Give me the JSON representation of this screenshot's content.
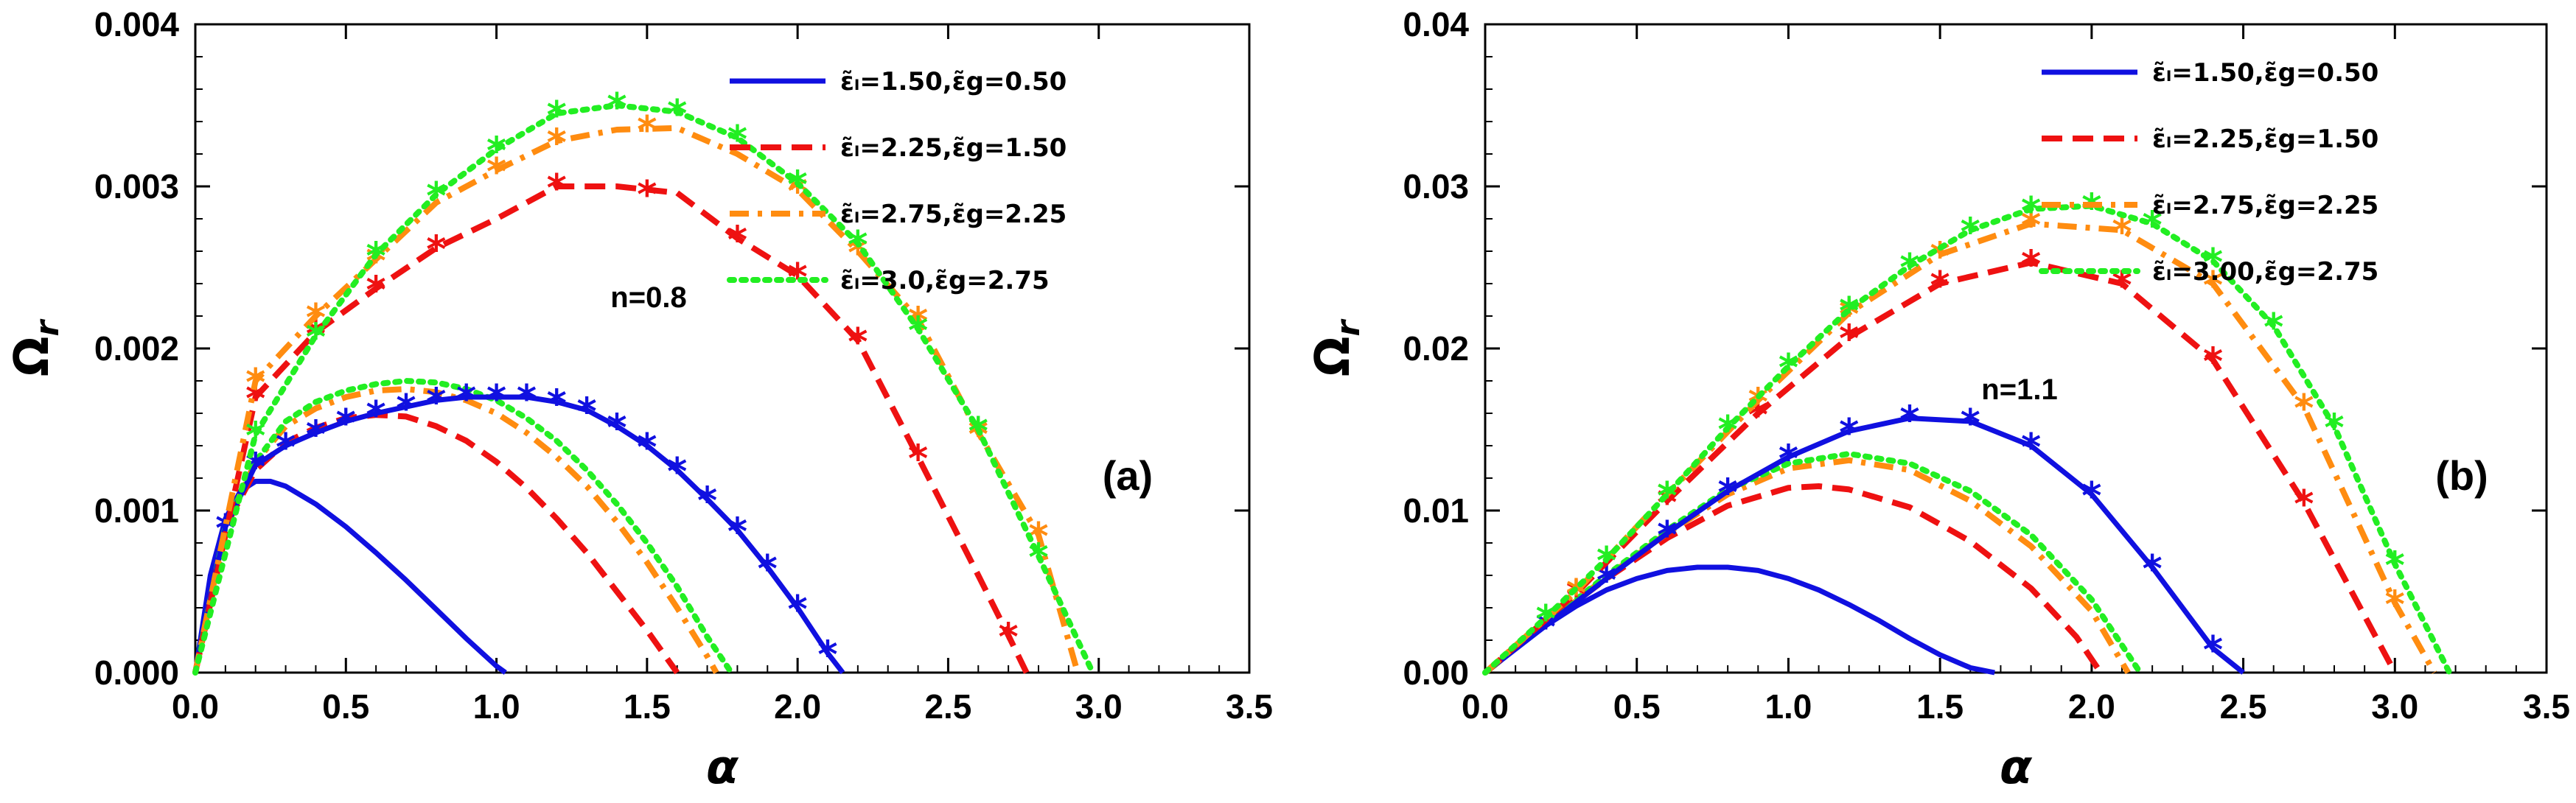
{
  "colors": {
    "blue": "#1010e0",
    "red": "#ee1111",
    "orange": "#ff8c10",
    "green": "#22ee22",
    "axis": "#000000"
  },
  "chart_data": [
    {
      "type": "line",
      "panel_label": "(a)",
      "annotation": "n=0.8",
      "xlabel": "α",
      "ylabel": "Ω",
      "ylabel_sub": "r",
      "xlim": [
        0,
        3.5
      ],
      "ylim": [
        0,
        0.004
      ],
      "xticks": [
        0,
        0.5,
        1,
        1.5,
        2,
        2.5,
        3,
        3.5
      ],
      "xtick_labels": [
        "0.0",
        "0.5",
        "1.0",
        "1.5",
        "2.0",
        "2.5",
        "3.0",
        "3.5"
      ],
      "yticks": [
        0,
        0.001,
        0.002,
        0.003,
        0.004
      ],
      "ytick_labels": [
        "0.000",
        "0.001",
        "0.002",
        "0.003",
        "0.004"
      ],
      "legend": [
        {
          "label": "ε̃ₗ=1.50,ε̃g=0.50",
          "color": "blue",
          "dash": "none"
        },
        {
          "label": "ε̃ₗ=2.25,ε̃g=1.50",
          "color": "red",
          "dash": "dashed"
        },
        {
          "label": "ε̃ₗ=2.75,ε̃g=2.25",
          "color": "orange",
          "dash": "dashdot"
        },
        {
          "label": "ε̃ₗ=3.0,ε̃g=2.75",
          "color": "green",
          "dash": "dotted"
        }
      ],
      "series": [
        {
          "name": "ε̃ₗ=1.50,ε̃g=0.50",
          "color": "blue",
          "dash": "none",
          "kind": "line",
          "x": [
            0,
            0.05,
            0.1,
            0.15,
            0.2,
            0.25,
            0.3,
            0.4,
            0.5,
            0.6,
            0.7,
            0.8,
            0.9,
            1.0,
            1.03
          ],
          "y": [
            0,
            0.0006,
            0.00095,
            0.00112,
            0.00118,
            0.00118,
            0.00115,
            0.00104,
            0.0009,
            0.00074,
            0.00057,
            0.00039,
            0.00021,
            4e-05,
            0
          ]
        },
        {
          "name": "ε̃ₗ=2.25,ε̃g=1.50",
          "color": "red",
          "dash": "dashed",
          "kind": "line",
          "x": [
            0,
            0.1,
            0.2,
            0.3,
            0.4,
            0.5,
            0.6,
            0.7,
            0.8,
            0.9,
            1.0,
            1.1,
            1.2,
            1.3,
            1.4,
            1.5,
            1.6
          ],
          "y": [
            0,
            0.0009,
            0.00125,
            0.00142,
            0.00151,
            0.00157,
            0.00159,
            0.00158,
            0.00152,
            0.00143,
            0.0013,
            0.00114,
            0.00095,
            0.00074,
            0.0005,
            0.00026,
            0
          ]
        },
        {
          "name": "ε̃ₗ=2.75,ε̃g=2.25",
          "color": "orange",
          "dash": "dashdot",
          "kind": "line",
          "x": [
            0,
            0.1,
            0.2,
            0.3,
            0.4,
            0.5,
            0.6,
            0.7,
            0.8,
            0.9,
            1.0,
            1.1,
            1.2,
            1.3,
            1.4,
            1.5,
            1.6,
            1.7,
            1.73
          ],
          "y": [
            0,
            0.0009,
            0.0013,
            0.00152,
            0.00163,
            0.0017,
            0.00174,
            0.00175,
            0.00173,
            0.00168,
            0.0016,
            0.00148,
            0.00133,
            0.00115,
            0.00093,
            0.00068,
            0.0004,
            0.0001,
            0
          ]
        },
        {
          "name": "ε̃ₗ=3.0,ε̃g=2.75",
          "color": "green",
          "dash": "dotted",
          "kind": "line",
          "x": [
            0,
            0.1,
            0.2,
            0.3,
            0.4,
            0.5,
            0.6,
            0.7,
            0.8,
            0.9,
            1.0,
            1.1,
            1.2,
            1.3,
            1.4,
            1.5,
            1.6,
            1.7,
            1.78
          ],
          "y": [
            0,
            0.0009,
            0.0013,
            0.00155,
            0.00167,
            0.00174,
            0.00178,
            0.0018,
            0.00179,
            0.00175,
            0.00168,
            0.00157,
            0.00143,
            0.00125,
            0.00104,
            0.0008,
            0.00053,
            0.00022,
            0
          ]
        },
        {
          "name": "ε̃ₗ=1.50,ε̃g=0.50 (with stars)",
          "color": "blue",
          "dash": "none",
          "kind": "line-star",
          "x": [
            0,
            0.1,
            0.2,
            0.3,
            0.4,
            0.5,
            0.6,
            0.7,
            0.8,
            0.9,
            1.0,
            1.1,
            1.2,
            1.3,
            1.4,
            1.5,
            1.6,
            1.7,
            1.8,
            1.9,
            2.0,
            2.1,
            2.15
          ],
          "y": [
            0,
            0.0009,
            0.00128,
            0.0014,
            0.00148,
            0.00155,
            0.0016,
            0.00164,
            0.00168,
            0.0017,
            0.0017,
            0.0017,
            0.00167,
            0.00162,
            0.00152,
            0.0014,
            0.00125,
            0.00107,
            0.00088,
            0.00065,
            0.0004,
            0.00012,
            0
          ],
          "marker_x": [
            0.1,
            0.2,
            0.3,
            0.4,
            0.5,
            0.6,
            0.7,
            0.8,
            0.9,
            1.0,
            1.1,
            1.2,
            1.3,
            1.4,
            1.5,
            1.6,
            1.7,
            1.8,
            1.9,
            2.0,
            2.1
          ],
          "marker_y": [
            0.0009,
            0.00128,
            0.0014,
            0.00148,
            0.00155,
            0.0016,
            0.00164,
            0.00168,
            0.0017,
            0.0017,
            0.0017,
            0.00167,
            0.00162,
            0.00152,
            0.0014,
            0.00125,
            0.00107,
            0.00088,
            0.00065,
            0.0004,
            0.00012
          ]
        },
        {
          "name": "ε̃ₗ=2.25,ε̃g=1.50 (with stars)",
          "color": "red",
          "dash": "dashed",
          "kind": "line-star",
          "x": [
            0,
            0.2,
            0.4,
            0.6,
            0.8,
            1.0,
            1.2,
            1.4,
            1.6,
            1.8,
            2.0,
            2.2,
            2.4,
            2.6,
            2.7,
            2.76
          ],
          "y": [
            0,
            0.0017,
            0.0021,
            0.00237,
            0.00262,
            0.0028,
            0.003,
            0.003,
            0.00296,
            0.00268,
            0.00245,
            0.00205,
            0.00133,
            0.0006,
            0.00023,
            0
          ],
          "marker_x": [
            0.2,
            0.4,
            0.6,
            0.8,
            1.2,
            1.5,
            1.8,
            2.0,
            2.2,
            2.4,
            2.7
          ],
          "marker_y": [
            0.0017,
            0.0021,
            0.00237,
            0.00262,
            0.003,
            0.00296,
            0.00268,
            0.00245,
            0.00205,
            0.00133,
            0.00023
          ]
        },
        {
          "name": "ε̃ₗ=2.75,ε̃g=2.25 (with stars)",
          "color": "orange",
          "dash": "dashdot",
          "kind": "line-star",
          "x": [
            0,
            0.2,
            0.4,
            0.6,
            0.8,
            1.0,
            1.2,
            1.4,
            1.6,
            1.8,
            2.0,
            2.2,
            2.4,
            2.6,
            2.8,
            2.93
          ],
          "y": [
            0,
            0.0018,
            0.0022,
            0.00255,
            0.0029,
            0.0031,
            0.00328,
            0.00335,
            0.00336,
            0.0032,
            0.00298,
            0.0026,
            0.00218,
            0.00148,
            0.00085,
            0
          ],
          "marker_x": [
            0.2,
            0.4,
            0.6,
            1.0,
            1.2,
            1.5,
            2.0,
            2.2,
            2.4,
            2.6,
            2.8
          ],
          "marker_y": [
            0.0018,
            0.0022,
            0.00255,
            0.0031,
            0.00328,
            0.00336,
            0.00298,
            0.0026,
            0.00218,
            0.00148,
            0.00085
          ]
        },
        {
          "name": "ε̃ₗ=3.0,ε̃g=2.75 (with stars)",
          "color": "green",
          "dash": "dotted",
          "kind": "line-star",
          "x": [
            0,
            0.2,
            0.4,
            0.6,
            0.8,
            1.0,
            1.2,
            1.4,
            1.6,
            1.8,
            2.0,
            2.2,
            2.4,
            2.6,
            2.8,
            2.98
          ],
          "y": [
            0,
            0.00147,
            0.00208,
            0.00258,
            0.00295,
            0.00323,
            0.00345,
            0.0035,
            0.00346,
            0.0033,
            0.00302,
            0.00265,
            0.00212,
            0.0015,
            0.00072,
            0
          ],
          "marker_x": [
            0.2,
            0.4,
            0.6,
            0.8,
            1.0,
            1.2,
            1.4,
            1.6,
            1.8,
            2.0,
            2.2,
            2.4,
            2.6,
            2.8
          ],
          "marker_y": [
            0.00147,
            0.00208,
            0.00258,
            0.00295,
            0.00323,
            0.00345,
            0.0035,
            0.00346,
            0.0033,
            0.00302,
            0.00265,
            0.00212,
            0.0015,
            0.00072
          ]
        }
      ]
    },
    {
      "type": "line",
      "panel_label": "(b)",
      "annotation": "n=1.1",
      "xlabel": "α",
      "ylabel": "Ω",
      "ylabel_sub": "r",
      "xlim": [
        0,
        3.5
      ],
      "ylim": [
        0,
        0.04
      ],
      "xticks": [
        0,
        0.5,
        1,
        1.5,
        2,
        2.5,
        3,
        3.5
      ],
      "xtick_labels": [
        "0.0",
        "0.5",
        "1.0",
        "1.5",
        "2.0",
        "2.5",
        "3.0",
        "3.5"
      ],
      "yticks": [
        0,
        0.01,
        0.02,
        0.03,
        0.04
      ],
      "ytick_labels": [
        "0.00",
        "0.01",
        "0.02",
        "0.03",
        "0.04"
      ],
      "legend": [
        {
          "label": "ε̃ₗ=1.50,ε̃g=0.50",
          "color": "blue",
          "dash": "none"
        },
        {
          "label": "ε̃ₗ=2.25,ε̃g=1.50",
          "color": "red",
          "dash": "dashed"
        },
        {
          "label": "ε̃ₗ=2.75,ε̃g=2.25",
          "color": "orange",
          "dash": "dashdot"
        },
        {
          "label": "ε̃ₗ=3.00,ε̃g=2.75",
          "color": "green",
          "dash": "dotted"
        }
      ],
      "series": [
        {
          "name": "ε̃ₗ=1.50,ε̃g=0.50",
          "color": "blue",
          "dash": "none",
          "kind": "line",
          "x": [
            0,
            0.1,
            0.2,
            0.3,
            0.4,
            0.5,
            0.6,
            0.7,
            0.8,
            0.9,
            1.0,
            1.1,
            1.2,
            1.3,
            1.4,
            1.5,
            1.6,
            1.68
          ],
          "y": [
            0,
            0.0015,
            0.0029,
            0.0041,
            0.0051,
            0.0058,
            0.0063,
            0.0065,
            0.0065,
            0.0063,
            0.0058,
            0.0051,
            0.0042,
            0.0032,
            0.0021,
            0.0011,
            0.0003,
            0
          ]
        },
        {
          "name": "ε̃ₗ=2.25,ε̃g=1.50",
          "color": "red",
          "dash": "dashed",
          "kind": "line",
          "x": [
            0,
            0.2,
            0.4,
            0.6,
            0.8,
            1.0,
            1.1,
            1.2,
            1.4,
            1.6,
            1.8,
            1.95,
            2.03
          ],
          "y": [
            0,
            0.003,
            0.0058,
            0.0083,
            0.0103,
            0.0114,
            0.0115,
            0.0113,
            0.0102,
            0.0081,
            0.0052,
            0.0022,
            0
          ]
        },
        {
          "name": "ε̃ₗ=2.75,ε̃g=2.25",
          "color": "orange",
          "dash": "dashdot",
          "kind": "line",
          "x": [
            0,
            0.2,
            0.4,
            0.6,
            0.8,
            1.0,
            1.2,
            1.4,
            1.6,
            1.8,
            2.0,
            2.12
          ],
          "y": [
            0,
            0.003,
            0.0059,
            0.0086,
            0.011,
            0.0126,
            0.0131,
            0.0125,
            0.0106,
            0.0078,
            0.0038,
            0
          ]
        },
        {
          "name": "ε̃ₗ=3.00,ε̃g=2.75",
          "color": "green",
          "dash": "dotted",
          "kind": "line",
          "x": [
            0,
            0.2,
            0.4,
            0.6,
            0.8,
            1.0,
            1.2,
            1.4,
            1.6,
            1.8,
            2.0,
            2.16
          ],
          "y": [
            0,
            0.003,
            0.006,
            0.0088,
            0.0113,
            0.0129,
            0.0135,
            0.0129,
            0.0112,
            0.0085,
            0.0045,
            0
          ]
        },
        {
          "name": "ε̃ₗ=1.50,ε̃g=0.50 (with stars)",
          "color": "blue",
          "dash": "none",
          "kind": "line-star",
          "x": [
            0,
            0.2,
            0.4,
            0.6,
            0.8,
            1.0,
            1.2,
            1.4,
            1.6,
            1.8,
            2.0,
            2.2,
            2.4,
            2.5
          ],
          "y": [
            0,
            0.0029,
            0.0058,
            0.0086,
            0.0112,
            0.0133,
            0.0149,
            0.0157,
            0.0155,
            0.014,
            0.011,
            0.0065,
            0.0015,
            0
          ],
          "marker_x": [
            0.2,
            0.4,
            0.6,
            0.8,
            1.0,
            1.2,
            1.4,
            1.6,
            1.8,
            2.0,
            2.2,
            2.4
          ],
          "marker_y": [
            0.0029,
            0.0058,
            0.0086,
            0.0112,
            0.0133,
            0.0149,
            0.0157,
            0.0155,
            0.014,
            0.011,
            0.0065,
            0.0015
          ]
        },
        {
          "name": "ε̃ₗ=2.25,ε̃g=1.50 (with stars)",
          "color": "red",
          "dash": "dashed",
          "kind": "line-star",
          "x": [
            0,
            0.3,
            0.6,
            0.9,
            1.2,
            1.5,
            1.8,
            2.1,
            2.4,
            2.7,
            3.0
          ],
          "y": [
            0,
            0.0049,
            0.0106,
            0.016,
            0.0207,
            0.024,
            0.0253,
            0.024,
            0.0193,
            0.0105,
            0
          ],
          "marker_x": [
            0.3,
            0.6,
            0.9,
            1.2,
            1.5,
            1.8,
            2.1,
            2.4,
            2.7
          ],
          "marker_y": [
            0.0049,
            0.0106,
            0.016,
            0.0207,
            0.024,
            0.0253,
            0.024,
            0.0193,
            0.0105
          ]
        },
        {
          "name": "ε̃ₗ=2.75,ε̃g=2.25 (with stars)",
          "color": "orange",
          "dash": "dashdot",
          "kind": "line-star",
          "x": [
            0,
            0.3,
            0.6,
            0.9,
            1.2,
            1.5,
            1.8,
            2.1,
            2.4,
            2.7,
            3.0,
            3.13
          ],
          "y": [
            0,
            0.005,
            0.011,
            0.0168,
            0.0222,
            0.0258,
            0.0277,
            0.0273,
            0.024,
            0.0164,
            0.0043,
            0
          ],
          "marker_x": [
            0.3,
            0.6,
            0.9,
            1.2,
            1.5,
            1.8,
            2.1,
            2.4,
            2.7,
            3.0
          ],
          "marker_y": [
            0.005,
            0.011,
            0.0168,
            0.0222,
            0.0258,
            0.0277,
            0.0273,
            0.024,
            0.0164,
            0.0043
          ]
        },
        {
          "name": "ε̃ₗ=3.00,ε̃g=2.75 (with stars)",
          "color": "green",
          "dash": "dotted",
          "kind": "line-star",
          "x": [
            0,
            0.2,
            0.4,
            0.6,
            0.8,
            1.0,
            1.2,
            1.4,
            1.6,
            1.8,
            2.0,
            2.2,
            2.4,
            2.6,
            2.8,
            3.0,
            3.18
          ],
          "y": [
            0,
            0.0034,
            0.007,
            0.011,
            0.0151,
            0.0189,
            0.0224,
            0.0251,
            0.0273,
            0.0286,
            0.0288,
            0.0277,
            0.0254,
            0.0214,
            0.0152,
            0.0067,
            0
          ],
          "marker_x": [
            0.2,
            0.4,
            0.6,
            0.8,
            1.0,
            1.2,
            1.4,
            1.6,
            1.8,
            2.0,
            2.2,
            2.4,
            2.6,
            2.8,
            3.0
          ],
          "marker_y": [
            0.0034,
            0.007,
            0.011,
            0.0151,
            0.0189,
            0.0224,
            0.0251,
            0.0273,
            0.0286,
            0.0288,
            0.0277,
            0.0254,
            0.0214,
            0.0152,
            0.0067
          ]
        }
      ]
    }
  ]
}
